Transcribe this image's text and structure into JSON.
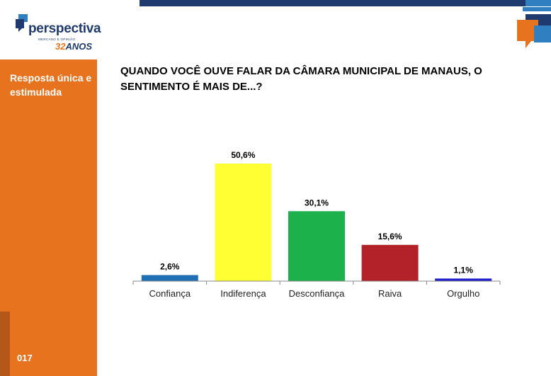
{
  "brand": {
    "name": "perspectiva",
    "tagline": "MERCADO E OPINIÃO",
    "years_number": "32",
    "years_word": "ANOS",
    "colors": {
      "navy": "#1f3a6e",
      "orange": "#e8731e",
      "blue": "#2f7fc1"
    }
  },
  "sidebar": {
    "label": "Resposta única e estimulada",
    "page_number": "017"
  },
  "chart_data": {
    "type": "bar",
    "title": "QUANDO VOCÊ OUVE FALAR DA CÂMARA MUNICIPAL DE MANAUS, O SENTIMENTO É MAIS DE...?",
    "categories": [
      "Confiança",
      "Indiferença",
      "Desconfiança",
      "Raiva",
      "Orgulho"
    ],
    "values": [
      2.6,
      50.6,
      30.1,
      15.6,
      1.1
    ],
    "value_labels": [
      "2,6%",
      "50,6%",
      "30,1%",
      "15,6%",
      "1,1%"
    ],
    "colors": [
      "#1f6fb5",
      "#ffff33",
      "#1db14b",
      "#b22228",
      "#1a1acc"
    ],
    "ylim": [
      0,
      50.6
    ],
    "grid": false,
    "legend": "none"
  }
}
